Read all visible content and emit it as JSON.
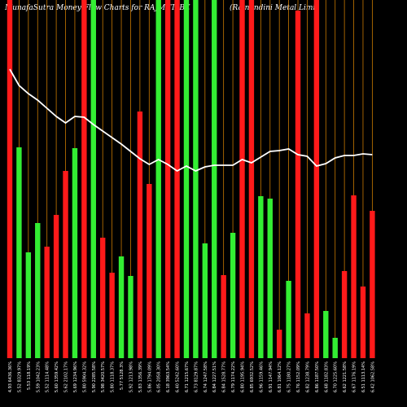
{
  "chart_data": {
    "type": "bar",
    "title": "MunafaSutra  Money Flow  Charts for RAJMET_BE",
    "subtitle": "(Rajnandini  Metal Limit",
    "categories": [
      "4.93 6436.36%",
      "5.52 8329.97%",
      "5.53 118.19%",
      "5.59 1042.23%",
      "5.52 1114.48%",
      "5.60 1359.42%",
      "5.62 2102.17%",
      "5.69 1234.96%",
      "5.80 5904.32%",
      "5.90 2285.58%",
      "5.98 3420.57%",
      "5.80 1118.37%",
      "5.77 5128.3%",
      "5.92 1213.98%",
      "5.83 1356.39%",
      "5.86 1794.09%",
      "6.05 2058.30%",
      "6.18 3963.54%",
      "6.40 5242.60%",
      "6.71 1215.67%",
      "6.73 8129.87%",
      "6.74 1247.58%",
      "6.84 1227.51%",
      "6.84 1528.77%",
      "6.79 1174.22%",
      "6.80 1195.94%",
      "6.85 6932.52%",
      "6.96 1159.46%",
      "6.91 1147.94%",
      "6.81 1064.12%",
      "6.75 1180.27%",
      "6.76 1152.09%",
      "6.82 1238.79%",
      "6.86 1187.50%",
      "6.68 1182.83%",
      "6.70 1225.60%",
      "6.62 1221.58%",
      "6.67 1176.19%",
      "6.51 1113.14%",
      "6.42 1062.58%"
    ],
    "series": [
      {
        "name": "money flow",
        "values": [
          440,
          259,
          130,
          166,
          137,
          176,
          230,
          258,
          440,
          440,
          148,
          105,
          125,
          101,
          303,
          214,
          440,
          440,
          440,
          440,
          440,
          141,
          440,
          102,
          154,
          440,
          440,
          199,
          196,
          35,
          95,
          427,
          55,
          440,
          58,
          25,
          107,
          200,
          88,
          181
        ],
        "colors": [
          "#ff1a1a",
          "#33ee33",
          "#33ee33",
          "#33ee33",
          "#ff1a1a",
          "#ff1a1a",
          "#ff1a1a",
          "#33ee33",
          "#ff1a1a",
          "#33ee33",
          "#ff1a1a",
          "#ff1a1a",
          "#33ee33",
          "#33ee33",
          "#ff1a1a",
          "#ff1a1a",
          "#33ee33",
          "#ff1a1a",
          "#ff1a1a",
          "#33ee33",
          "#33ee33",
          "#33ee33",
          "#33ee33",
          "#ff1a1a",
          "#33ee33",
          "#ff1a1a",
          "#ff1a1a",
          "#33ee33",
          "#33ee33",
          "#ff1a1a",
          "#33ee33",
          "#ff1a1a",
          "#ff1a1a",
          "#ff1a1a",
          "#33ee33",
          "#33ee33",
          "#ff1a1a",
          "#ff1a1a",
          "#ff1a1a",
          "#ff1a1a"
        ]
      },
      {
        "name": "price",
        "color": "#ffffff",
        "values": [
          355,
          335,
          325,
          317,
          307,
          297,
          289,
          297,
          296,
          287,
          279,
          271,
          263,
          254,
          245,
          238,
          244,
          238,
          230,
          236,
          230,
          235,
          237,
          237,
          237,
          244,
          240,
          247,
          254,
          255,
          257,
          250,
          248,
          236,
          239,
          246,
          249,
          249,
          251,
          250
        ]
      }
    ],
    "ylim": [
      0,
      440
    ],
    "guide_color": "#c87800"
  }
}
